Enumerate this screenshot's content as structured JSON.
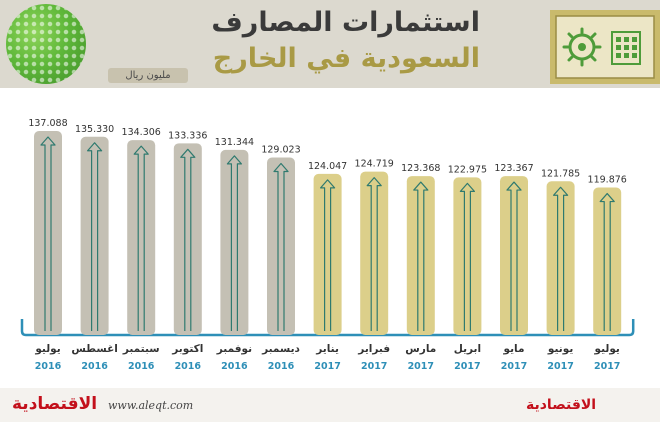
{
  "header": {
    "title_line1": "استثمارات المصارف",
    "title_line2": "السعودية في الخارج",
    "unit": "مليون ريال"
  },
  "footer": {
    "brand": "الاقتصادية",
    "site": "www.aleqt.com"
  },
  "colors": {
    "bar_2016": "#c4c0b4",
    "bar_2017": "#dccf8a",
    "arrow": "#2f7a6f",
    "year_label": "#2e8fb7",
    "month_label": "#333333",
    "brand": "#c3101b"
  },
  "chart_data": {
    "type": "bar",
    "title": "استثمارات المصارف السعودية في الخارج",
    "ylabel": "مليون ريال",
    "categories": [
      "يوليو",
      "اغسطس",
      "سبتمبر",
      "اكتوبر",
      "نوفمبر",
      "ديسمبر",
      "يناير",
      "فبراير",
      "مارس",
      "ابريل",
      "مايو",
      "يونيو",
      "يوليو"
    ],
    "years": [
      "2016",
      "2016",
      "2016",
      "2016",
      "2016",
      "2016",
      "2017",
      "2017",
      "2017",
      "2017",
      "2017",
      "2017",
      "2017"
    ],
    "values": [
      137.088,
      135.33,
      134.306,
      133.336,
      131.344,
      129.023,
      124.047,
      124.719,
      123.368,
      122.975,
      123.367,
      121.785,
      119.876
    ],
    "value_labels": [
      "137.088",
      "135.330",
      "134.306",
      "133.336",
      "131.344",
      "129.023",
      "124.047",
      "124.719",
      "123.368",
      "122.975",
      "123.367",
      "121.785",
      "119.876"
    ]
  }
}
